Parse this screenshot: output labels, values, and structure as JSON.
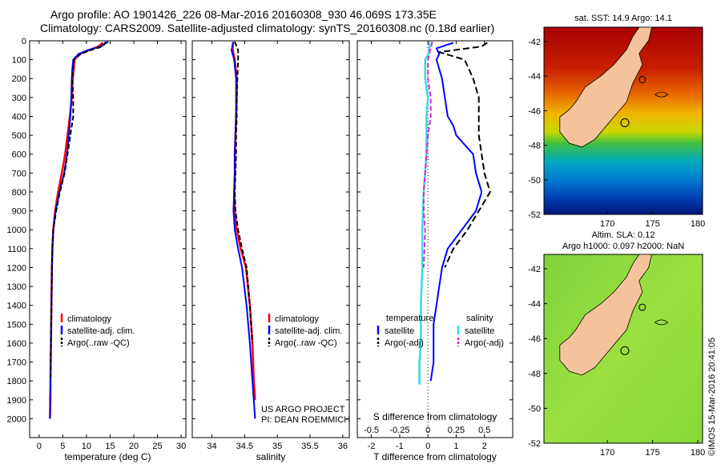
{
  "header": {
    "line1": "Argo profile: AO 1901426_226 08-Mar-2016 20160308_930 46.069S 173.35E",
    "line2": "Climatology: CARS2009. Satellite-adjusted climatology: synTS_20160308.nc (0.18d earlier)"
  },
  "colors": {
    "climatology": "#ff0000",
    "satellite": "#0000ff",
    "argo": "#000000",
    "sal_satellite": "#33dddd",
    "sal_argo": "#dd22dd",
    "land": "#f5c39b"
  },
  "chart_data": [
    {
      "type": "line",
      "title": "",
      "xlabel": "temperature (deg C)",
      "ylabel": "",
      "xlim": [
        -2,
        31
      ],
      "ylim": [
        2100,
        0
      ],
      "xticks": [
        0,
        5,
        10,
        15,
        20,
        25,
        30
      ],
      "yticks": [
        0,
        100,
        200,
        300,
        400,
        500,
        600,
        700,
        800,
        900,
        1000,
        1100,
        1200,
        1300,
        1400,
        1500,
        1600,
        1700,
        1800,
        1900,
        2000
      ],
      "legend": {
        "placement": "center-left",
        "entries": [
          "climatology",
          "satellite-adj. clim.",
          "Argo(..raw -QC)"
        ]
      },
      "series": [
        {
          "name": "climatology",
          "x": [
            13.5,
            12.5,
            10.5,
            8.5,
            7.5,
            7.3,
            7.1,
            6.9,
            6.5,
            6.0,
            5.5,
            4.8,
            4.0,
            3.4,
            3.0,
            2.8,
            2.7,
            2.6,
            2.5,
            2.4,
            2.4,
            2.3
          ],
          "y": [
            10,
            30,
            50,
            70,
            100,
            150,
            200,
            300,
            400,
            500,
            600,
            700,
            800,
            900,
            1000,
            1100,
            1200,
            1400,
            1600,
            1800,
            1900,
            2000
          ]
        },
        {
          "name": "satellite-adj. clim.",
          "x": [
            14.6,
            13.0,
            10.2,
            8.3,
            7.2,
            7.0,
            6.9,
            6.8,
            6.6,
            6.3,
            5.9,
            5.3,
            4.3,
            3.5,
            3.0,
            2.8,
            2.7,
            2.6,
            2.5,
            2.4,
            2.3,
            2.3
          ],
          "y": [
            5,
            30,
            50,
            70,
            100,
            150,
            200,
            300,
            400,
            500,
            600,
            700,
            800,
            900,
            1000,
            1100,
            1200,
            1400,
            1600,
            1800,
            1900,
            2000
          ]
        },
        {
          "name": "Argo(..raw -QC)",
          "x": [
            14.1,
            13.4,
            10.8,
            8.8,
            7.4,
            7.2,
            7.0,
            7.2,
            7.2,
            6.6,
            6.0,
            5.4,
            4.4,
            3.6,
            3.0,
            2.8,
            2.7,
            2.6,
            2.5,
            2.4
          ],
          "y": [
            5,
            30,
            50,
            70,
            100,
            150,
            200,
            300,
            400,
            500,
            600,
            700,
            800,
            900,
            1000,
            1100,
            1200,
            1400,
            1600,
            1800
          ]
        }
      ]
    },
    {
      "type": "line",
      "title": "",
      "xlabel": "salinity",
      "ylabel": "",
      "xlim": [
        33.7,
        36.1
      ],
      "ylim": [
        2100,
        0
      ],
      "xticks": [
        34,
        34.5,
        35,
        35.5,
        36
      ],
      "xticklabels": [
        "34",
        "34.5",
        "35",
        "35.5",
        "36"
      ],
      "legend": {
        "placement": "center-left",
        "entries": [
          "climatology",
          "satellite-adj. clim.",
          "Argo(..raw -QC)"
        ]
      },
      "annotation": [
        "US ARGO PROJECT",
        "PI: DEAN ROEMMICH"
      ],
      "series": [
        {
          "name": "climatology",
          "x": [
            34.32,
            34.32,
            34.35,
            34.38,
            34.38,
            34.37,
            34.36,
            34.35,
            34.35,
            34.34,
            34.35,
            34.38,
            34.44,
            34.52,
            34.58,
            34.62,
            34.64,
            34.66
          ],
          "y": [
            10,
            50,
            100,
            200,
            300,
            400,
            500,
            600,
            700,
            800,
            900,
            1000,
            1100,
            1200,
            1400,
            1600,
            1800,
            1900
          ]
        },
        {
          "name": "satellite-adj. clim.",
          "x": [
            34.33,
            34.3,
            34.34,
            34.37,
            34.37,
            34.37,
            34.36,
            34.35,
            34.35,
            34.34,
            34.33,
            34.35,
            34.4,
            34.46,
            34.53,
            34.58,
            34.62,
            34.64,
            34.66
          ],
          "y": [
            5,
            50,
            100,
            200,
            300,
            400,
            500,
            600,
            700,
            800,
            900,
            1000,
            1100,
            1200,
            1400,
            1600,
            1800,
            1900,
            2000
          ]
        },
        {
          "name": "Argo(..raw -QC)",
          "x": [
            34.35,
            34.4,
            34.4,
            34.39,
            34.38,
            34.38,
            34.37,
            34.37,
            34.36,
            34.35,
            34.36,
            34.4,
            34.46,
            34.53,
            34.58,
            34.62
          ],
          "y": [
            5,
            50,
            100,
            200,
            300,
            400,
            500,
            600,
            700,
            800,
            900,
            1000,
            1100,
            1200,
            1400,
            1600
          ]
        }
      ]
    },
    {
      "type": "line",
      "title": "",
      "xlabel": "T difference from climatology",
      "x2label": "S difference from climatology",
      "ylabel": "",
      "xlim": [
        -2.5,
        3.0
      ],
      "ylim": [
        2100,
        0
      ],
      "xticks": [
        -2,
        -1,
        0,
        1,
        2
      ],
      "x2ticks": [
        -0.5,
        -0.25,
        0,
        0.25,
        0.5
      ],
      "x2ticklabels": [
        "-0.5",
        "-0.25",
        "0",
        "0.25",
        "0.5"
      ],
      "legend": {
        "placement": "center",
        "groups": [
          "temperature",
          "salinity"
        ],
        "entries": [
          "satellite",
          "Argo(-adj)",
          "satellite",
          "Argo(-adj)"
        ]
      },
      "series": [
        {
          "name": "satellite",
          "x": [
            0.9,
            0.3,
            0.4,
            0.3,
            0.5,
            0.6,
            0.7,
            0.9,
            1.0,
            1.3,
            1.6,
            1.7,
            1.9,
            1.7,
            1.2,
            0.7,
            0.5,
            0.4,
            0.3,
            0.2,
            0.2,
            0.2,
            0.1
          ],
          "y": [
            10,
            40,
            70,
            100,
            200,
            300,
            400,
            450,
            500,
            550,
            600,
            700,
            800,
            900,
            1000,
            1100,
            1200,
            1300,
            1400,
            1500,
            1600,
            1700,
            1800
          ]
        },
        {
          "name": "Argo(-adj)",
          "x": [
            2.1,
            1.9,
            0.4,
            1.3,
            1.6,
            1.8,
            1.8,
            1.8,
            1.9,
            2.0,
            2.2,
            1.8,
            1.4,
            0.9,
            0.6
          ],
          "y": [
            10,
            30,
            60,
            100,
            200,
            300,
            400,
            500,
            600,
            700,
            800,
            900,
            1000,
            1100,
            1200
          ]
        },
        {
          "name": "satellite",
          "x": [
            0.05,
            0.05,
            -0.1,
            -0.1,
            0.0,
            -0.05,
            -0.05,
            -0.15,
            -0.2,
            -0.2,
            -0.25,
            -0.25,
            -0.3,
            -0.3,
            -0.3
          ],
          "y": [
            5,
            60,
            100,
            200,
            300,
            400,
            600,
            800,
            1000,
            1200,
            1400,
            1600,
            1700,
            1800,
            1820
          ]
        },
        {
          "name": "Argo(-adj)",
          "x": [
            0.15,
            0.0,
            0.0,
            0.1,
            0.1,
            0.0,
            -0.05,
            -0.1,
            -0.15,
            -0.15,
            -0.1,
            -0.15
          ],
          "y": [
            5,
            100,
            200,
            300,
            400,
            500,
            600,
            700,
            800,
            900,
            1000,
            1200
          ]
        }
      ]
    }
  ],
  "maps": [
    {
      "title": "sat. SST: 14.9 Argo: 14.1",
      "yticks": [
        "-42",
        "-44",
        "-46",
        "-48",
        "-50",
        "-52"
      ],
      "xticks": [
        "170",
        "175",
        "180"
      ]
    },
    {
      "title_line1": "Altim. SLA: 0.12",
      "title_line2": "Argo h1000: 0.097 h2000: NaN",
      "yticks": [
        "-42",
        "-44",
        "-46",
        "-48",
        "-50",
        "-52"
      ],
      "xticks": [
        "170",
        "175",
        "180"
      ]
    }
  ],
  "footer": {
    "stamp": "©IMOS 15-Mar-2016 20:41:05"
  }
}
